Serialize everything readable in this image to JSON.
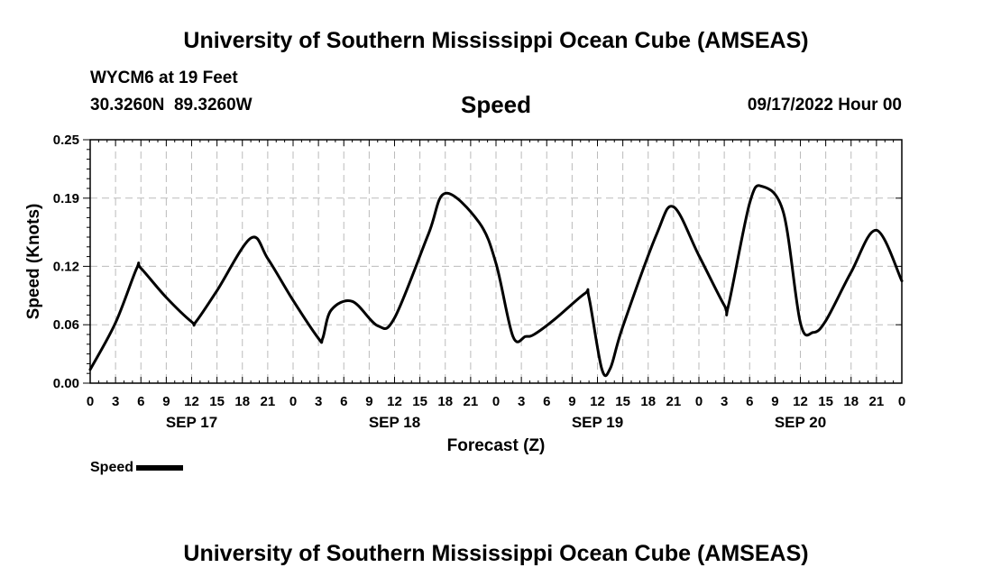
{
  "header": {
    "title": "University of Southern Mississippi Ocean Cube (AMSEAS)",
    "station": "WYCM6 at 19 Feet",
    "location": "30.3260N  89.3260W",
    "variable": "Speed",
    "datetime": "09/17/2022 Hour 00"
  },
  "footer": {
    "title": "University of Southern Mississippi Ocean Cube (AMSEAS)"
  },
  "legend": {
    "label": "Speed"
  },
  "chart_data": {
    "type": "line",
    "title": "Speed",
    "xlabel": "Forecast (Z)",
    "ylabel": "Speed (Knots)",
    "xlim": [
      0,
      96
    ],
    "ylim": [
      0,
      0.25
    ],
    "grid": true,
    "yticks": [
      0.0,
      0.06,
      0.12,
      0.19,
      0.25
    ],
    "ytick_labels": [
      "0.00",
      "0.06",
      "0.12",
      "0.19",
      "0.25"
    ],
    "xtick_labels": [
      "0",
      "3",
      "6",
      "9",
      "12",
      "15",
      "18",
      "21",
      "0",
      "3",
      "6",
      "9",
      "12",
      "15",
      "18",
      "21",
      "0",
      "3",
      "6",
      "9",
      "12",
      "15",
      "18",
      "21",
      "0",
      "3",
      "6",
      "9",
      "12",
      "15",
      "18",
      "21",
      "0"
    ],
    "date_labels": [
      {
        "hour": 12,
        "label": "SEP 17"
      },
      {
        "hour": 36,
        "label": "SEP 18"
      },
      {
        "hour": 60,
        "label": "SEP 19"
      },
      {
        "hour": 84,
        "label": "SEP 20"
      }
    ],
    "legend_position": "bottom-left",
    "series": [
      {
        "name": "Speed",
        "x": [
          0,
          3,
          5.5,
          6,
          9,
          12,
          12.5,
          15,
          19,
          21,
          24,
          27,
          27.5,
          28.5,
          31,
          34,
          36,
          40,
          42,
          46,
          48,
          50,
          51.5,
          52.5,
          55,
          58.5,
          59,
          60.5,
          61.5,
          63,
          67,
          69,
          72,
          75,
          75.5,
          78,
          79.5,
          82,
          84,
          85.5,
          87,
          90,
          93,
          96
        ],
        "y": [
          0.014,
          0.062,
          0.118,
          0.118,
          0.088,
          0.063,
          0.063,
          0.095,
          0.149,
          0.128,
          0.085,
          0.046,
          0.046,
          0.075,
          0.084,
          0.059,
          0.067,
          0.153,
          0.195,
          0.165,
          0.123,
          0.048,
          0.048,
          0.05,
          0.066,
          0.092,
          0.088,
          0.015,
          0.015,
          0.058,
          0.153,
          0.181,
          0.131,
          0.08,
          0.08,
          0.185,
          0.202,
          0.175,
          0.062,
          0.052,
          0.064,
          0.114,
          0.157,
          0.105
        ]
      }
    ]
  }
}
